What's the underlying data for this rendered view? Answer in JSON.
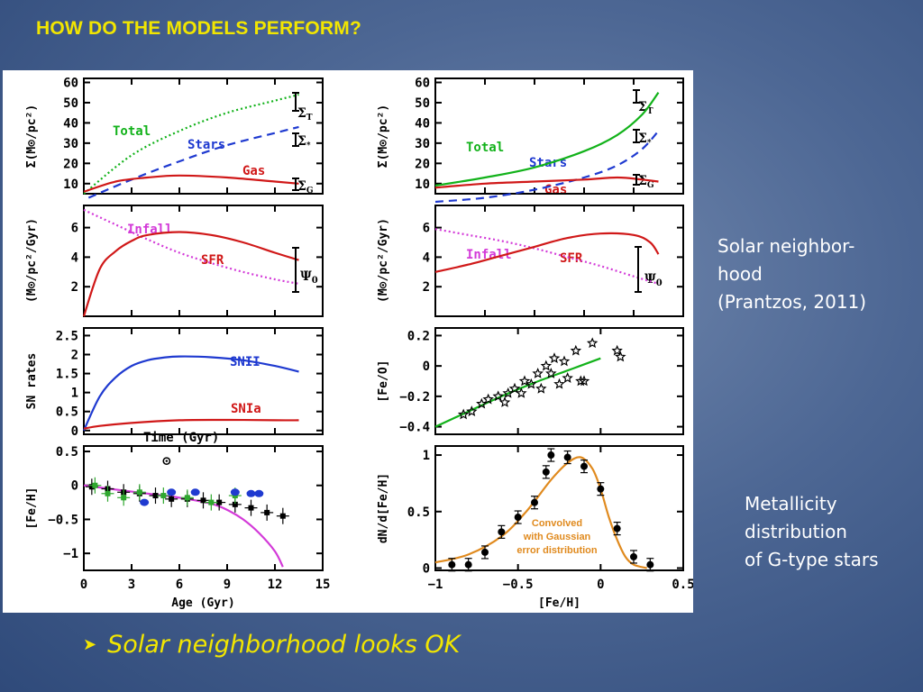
{
  "slide": {
    "title": "HOW DO THE MODELS PERFORM?",
    "note_solar": [
      "Solar neighbor-",
      "hood",
      "(Prantzos, 2011)"
    ],
    "note_metallicity": [
      "Metallicity",
      "distribution",
      "of G-type stars"
    ],
    "bullet_text": "Solar neighborhood looks OK",
    "colors": {
      "background": "#4d6794",
      "title": "#f2e600",
      "text": "#ffffff",
      "bullet": "#f2e600"
    }
  },
  "chart_data": [
    {
      "id": "L1",
      "type": "line",
      "ylabel": "Σ(M⊙/pc²)",
      "xlim": [
        0,
        15
      ],
      "ylim": [
        5,
        62
      ],
      "yticks": [
        10,
        20,
        30,
        40,
        50,
        60
      ],
      "series": [
        {
          "name": "Total",
          "color": "#12b21a",
          "style": "dotted",
          "x": [
            0,
            3,
            6,
            9,
            12,
            13.5
          ],
          "y": [
            5,
            24,
            36,
            45,
            51,
            54
          ]
        },
        {
          "name": "Stars",
          "color": "#1f3ad0",
          "style": "dashed",
          "x": [
            0.3,
            3,
            6,
            9,
            12,
            13.5
          ],
          "y": [
            3,
            12,
            21,
            29,
            35,
            38
          ]
        },
        {
          "name": "Gas",
          "color": "#d01818",
          "style": "solid",
          "x": [
            0,
            2,
            4,
            6,
            9,
            12,
            13.5
          ],
          "y": [
            6,
            11,
            13,
            14,
            13,
            11,
            10
          ]
        }
      ],
      "annotations": [
        "ΣT",
        "Σ*",
        "ΣG"
      ]
    },
    {
      "id": "L2",
      "type": "line",
      "ylabel": "(M⊙/pc²/Gyr)",
      "xlim": [
        0,
        15
      ],
      "ylim": [
        0,
        7.5
      ],
      "yticks": [
        2,
        4,
        6
      ],
      "series": [
        {
          "name": "Infall",
          "color": "#d33ad8",
          "style": "dotted",
          "x": [
            0,
            2,
            4,
            6,
            8,
            10,
            12,
            13.5
          ],
          "y": [
            7.2,
            6.2,
            5.2,
            4.3,
            3.6,
            3,
            2.5,
            2.2
          ]
        },
        {
          "name": "SFR",
          "color": "#d01818",
          "style": "solid",
          "x": [
            0,
            1,
            2,
            3,
            4,
            6,
            8,
            10,
            12,
            13.5
          ],
          "y": [
            0,
            3.2,
            4.4,
            5.1,
            5.5,
            5.7,
            5.5,
            5,
            4.3,
            3.8
          ]
        }
      ],
      "annotations": [
        "Ψ0"
      ]
    },
    {
      "id": "L3",
      "type": "line",
      "ylabel": "SN rates",
      "xlabel": "Time (Gyr)",
      "xlim": [
        0,
        15
      ],
      "ylim": [
        -0.1,
        2.7
      ],
      "yticks": [
        0,
        0.5,
        1,
        1.5,
        2,
        2.5
      ],
      "series": [
        {
          "name": "SNII",
          "color": "#1f3ad0",
          "style": "solid",
          "x": [
            0,
            1,
            2,
            3,
            4,
            5,
            6,
            8,
            10,
            12,
            13.5
          ],
          "y": [
            0,
            0.9,
            1.4,
            1.7,
            1.85,
            1.92,
            1.95,
            1.93,
            1.85,
            1.7,
            1.55
          ]
        },
        {
          "name": "SNIa",
          "color": "#d01818",
          "style": "solid",
          "x": [
            0,
            1,
            3,
            6,
            9,
            12,
            13.5
          ],
          "y": [
            0.05,
            0.12,
            0.2,
            0.27,
            0.28,
            0.27,
            0.27
          ]
        }
      ]
    },
    {
      "id": "L4",
      "type": "scatter",
      "ylabel": "[Fe/H]",
      "xlabel": "Age (Gyr)",
      "xlim": [
        0,
        15
      ],
      "ylim": [
        -1.25,
        0.58
      ],
      "xticks": [
        0,
        3,
        6,
        9,
        12,
        15
      ],
      "yticks": [
        -1,
        -0.5,
        0,
        0.5
      ],
      "series": [
        {
          "name": "model",
          "color": "#d33ad8",
          "style": "solid",
          "x": [
            0,
            2,
            4,
            6,
            8,
            9,
            10,
            11,
            12,
            12.5
          ],
          "y": [
            0,
            -0.06,
            -0.12,
            -0.18,
            -0.27,
            -0.36,
            -0.5,
            -0.7,
            -0.97,
            -1.2
          ]
        },
        {
          "name": "black",
          "color": "#000000",
          "x": [
            0.5,
            1.5,
            2.5,
            3.5,
            4.5,
            5.5,
            6.5,
            7.5,
            8.5,
            9.5,
            10.5,
            11.5,
            12.5
          ],
          "y": [
            -0.02,
            -0.05,
            -0.1,
            -0.12,
            -0.15,
            -0.2,
            -0.2,
            -0.22,
            -0.25,
            -0.28,
            -0.33,
            -0.4,
            -0.45
          ]
        },
        {
          "name": "green",
          "color": "#2fa82f",
          "x": [
            0.7,
            1.5,
            2.5,
            3.5,
            5,
            6.5,
            8,
            9.5
          ],
          "y": [
            0,
            -0.12,
            -0.18,
            -0.1,
            -0.15,
            -0.18,
            -0.25,
            -0.15
          ]
        },
        {
          "name": "blue",
          "color": "#1f3ad0",
          "x": [
            3.8,
            5.5,
            7,
            9.5,
            10.5,
            11
          ],
          "y": [
            -0.25,
            -0.1,
            -0.1,
            -0.1,
            -0.12,
            -0.12
          ]
        }
      ],
      "annotations": [
        "⊙"
      ]
    },
    {
      "id": "R1",
      "type": "line",
      "ylabel": "Σ(M⊙/pc²)",
      "xlim": [
        0,
        15
      ],
      "ylim": [
        5,
        62
      ],
      "yticks": [
        10,
        20,
        30,
        40,
        50,
        60
      ],
      "series": [
        {
          "name": "Total",
          "color": "#12b21a",
          "style": "solid",
          "x": [
            0,
            3,
            6,
            9,
            11,
            12.5,
            13.5
          ],
          "y": [
            9,
            13,
            18,
            26,
            34,
            44,
            55
          ]
        },
        {
          "name": "Stars",
          "color": "#1f3ad0",
          "style": "dashed",
          "x": [
            0,
            3,
            6,
            9,
            11,
            12.5,
            13.5
          ],
          "y": [
            1,
            3,
            7,
            13,
            19,
            27,
            36
          ]
        },
        {
          "name": "Gas",
          "color": "#d01818",
          "style": "solid",
          "x": [
            0,
            3,
            6,
            9,
            11,
            12.5,
            13.5
          ],
          "y": [
            8,
            10,
            11,
            12,
            13,
            12,
            11
          ]
        }
      ],
      "annotations": [
        "ΣT",
        "Σ*",
        "ΣG"
      ]
    },
    {
      "id": "R2",
      "type": "line",
      "ylabel": "(M⊙/pc²/Gyr)",
      "xlim": [
        0,
        15
      ],
      "ylim": [
        0,
        7.5
      ],
      "yticks": [
        2,
        4,
        6
      ],
      "series": [
        {
          "name": "Infall",
          "color": "#d33ad8",
          "style": "dotted",
          "x": [
            0,
            2,
            4,
            6,
            8,
            10,
            12,
            13.5
          ],
          "y": [
            5.9,
            5.5,
            5.1,
            4.6,
            4,
            3.4,
            2.7,
            2.2
          ]
        },
        {
          "name": "SFR",
          "color": "#d01818",
          "style": "solid",
          "x": [
            0,
            2,
            4,
            6,
            8,
            10,
            12,
            13,
            13.5
          ],
          "y": [
            3,
            3.5,
            4.1,
            4.7,
            5.3,
            5.6,
            5.5,
            5,
            4.2
          ]
        }
      ],
      "annotations": [
        "Ψ0"
      ]
    },
    {
      "id": "R3",
      "type": "scatter",
      "ylabel": "[Fe/O]",
      "xlim": [
        -1,
        0.5
      ],
      "ylim": [
        -0.45,
        0.25
      ],
      "yticks": [
        -0.4,
        -0.2,
        0,
        0.2
      ],
      "series": [
        {
          "name": "model",
          "color": "#12b21a",
          "style": "solid",
          "x": [
            -1,
            -0.8,
            -0.6,
            -0.4,
            -0.2,
            0
          ],
          "y": [
            -0.4,
            -0.3,
            -0.2,
            -0.11,
            -0.03,
            0.05
          ]
        },
        {
          "name": "stars",
          "color": "#000000",
          "x": [
            -0.83,
            -0.78,
            -0.72,
            -0.68,
            -0.62,
            -0.58,
            -0.56,
            -0.52,
            -0.48,
            -0.46,
            -0.42,
            -0.38,
            -0.36,
            -0.33,
            -0.3,
            -0.28,
            -0.25,
            -0.22,
            -0.2,
            -0.15,
            -0.12,
            -0.1,
            -0.05,
            0.1,
            0.12
          ],
          "y": [
            -0.32,
            -0.3,
            -0.25,
            -0.22,
            -0.2,
            -0.24,
            -0.18,
            -0.15,
            -0.18,
            -0.1,
            -0.12,
            -0.05,
            -0.15,
            0,
            -0.05,
            0.05,
            -0.12,
            0.03,
            -0.08,
            0.1,
            -0.1,
            -0.1,
            0.15,
            0.1,
            0.06
          ]
        }
      ]
    },
    {
      "id": "R4",
      "type": "line",
      "ylabel": "dN/d[Fe/H]",
      "xlabel": "[Fe/H]",
      "xlim": [
        -1,
        0.5
      ],
      "ylim": [
        -0.02,
        1.08
      ],
      "xticks": [
        -1,
        -0.5,
        0,
        0.5
      ],
      "yticks": [
        0,
        0.5,
        1
      ],
      "series": [
        {
          "name": "Convolved with Gaussian error distribution",
          "color": "#e08a1e",
          "style": "solid",
          "x": [
            -1,
            -0.8,
            -0.6,
            -0.45,
            -0.3,
            -0.2,
            -0.12,
            -0.05,
            0,
            0.05,
            0.1,
            0.15,
            0.2,
            0.28
          ],
          "y": [
            0.05,
            0.12,
            0.28,
            0.5,
            0.78,
            0.93,
            0.98,
            0.88,
            0.7,
            0.45,
            0.25,
            0.1,
            0.03,
            0
          ]
        },
        {
          "name": "data",
          "color": "#000000",
          "x": [
            -0.9,
            -0.8,
            -0.7,
            -0.6,
            -0.5,
            -0.4,
            -0.33,
            -0.3,
            -0.2,
            -0.1,
            0,
            0.1,
            0.2,
            0.3
          ],
          "y": [
            0.03,
            0.03,
            0.14,
            0.32,
            0.45,
            0.58,
            0.85,
            1.0,
            0.98,
            0.9,
            0.7,
            0.35,
            0.1,
            0.03
          ]
        }
      ]
    }
  ],
  "figure_labels": {
    "L1": {
      "total": "Total",
      "stars": "Stars",
      "gas": "Gas",
      "sT": "Σ",
      "sS": "Σ",
      "sG": "Σ",
      "subT": "T",
      "subS": "*",
      "subG": "G",
      "yt": [
        "10",
        "20",
        "30",
        "40",
        "50",
        "60"
      ],
      "ylabel": "Σ(M⊙/pc²)"
    },
    "L2": {
      "infall": "Infall",
      "sfr": "SFR",
      "psi": "Ψ",
      "sub": "0",
      "yt": [
        "2",
        "4",
        "6"
      ],
      "ylabel": "(M⊙/pc²/Gyr)"
    },
    "L3": {
      "snii": "SNII",
      "snia": "SNIa",
      "time": "Time (Gyr)",
      "yt": [
        "0",
        "0.5",
        "1",
        "1.5",
        "2",
        "2.5"
      ],
      "ylabel": "SN rates"
    },
    "L4": {
      "sun": "⊙",
      "yt": [
        "−1",
        "−0.5",
        "0",
        "0.5"
      ],
      "xt": [
        "0",
        "3",
        "6",
        "9",
        "12",
        "15"
      ],
      "xlabel": "Age (Gyr)",
      "ylabel": "[Fe/H]"
    },
    "R1": {
      "total": "Total",
      "stars": "Stars",
      "gas": "Gas",
      "sT": "Σ",
      "sS": "Σ",
      "sG": "Σ",
      "subT": "T",
      "subS": "*",
      "subG": "G",
      "yt": [
        "10",
        "20",
        "30",
        "40",
        "50",
        "60"
      ],
      "ylabel": "Σ(M⊙/pc²)"
    },
    "R2": {
      "infall": "Infall",
      "sfr": "SFR",
      "psi": "Ψ",
      "sub": "0",
      "yt": [
        "2",
        "4",
        "6"
      ],
      "ylabel": "(M⊙/pc²/Gyr)"
    },
    "R3": {
      "yt": [
        "−0.4",
        "−0.2",
        "0",
        "0.2"
      ],
      "ylabel": "[Fe/O]"
    },
    "R4": {
      "conv1": "Convolved",
      "conv2": "with Gaussian",
      "conv3": "error distribution",
      "yt": [
        "0",
        "0.5",
        "1"
      ],
      "xt": [
        "−1",
        "−0.5",
        "0",
        "0.5"
      ],
      "xlabel": "[Fe/H]",
      "ylabel": "dN/d[Fe/H]"
    }
  }
}
